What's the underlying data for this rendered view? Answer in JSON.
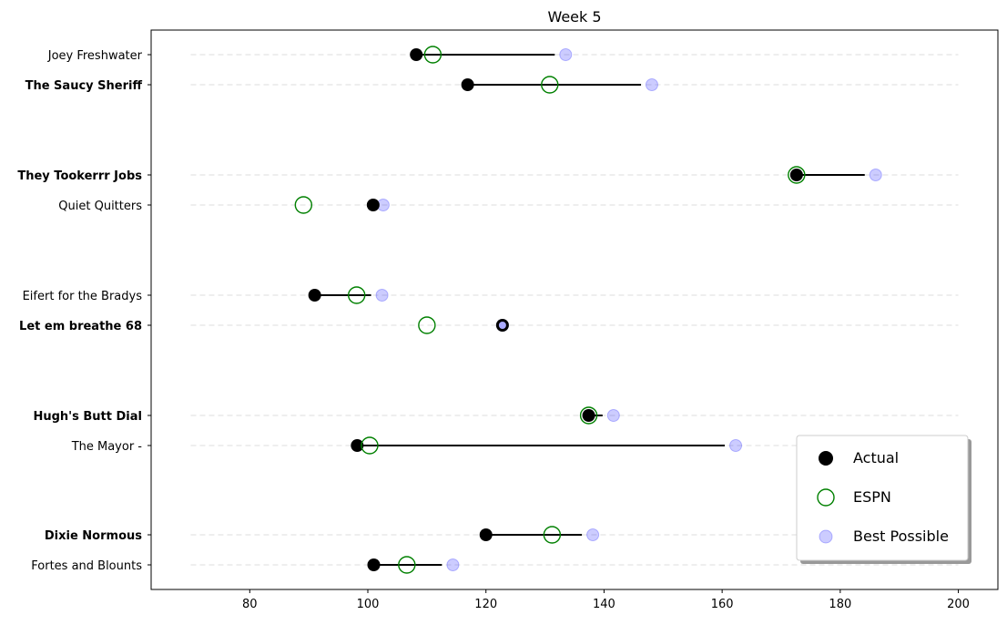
{
  "chart_data": {
    "type": "dumbbell",
    "title": "Week 5",
    "xlabel": "",
    "ylabel": "",
    "xlim": [
      63.3,
      206.7
    ],
    "x_ticks": [
      80,
      100,
      120,
      140,
      160,
      180,
      200
    ],
    "grid": "horizontal dashed guide lines per row",
    "legend_position": "lower-right",
    "legend": [
      {
        "key": "actual",
        "label": "Actual"
      },
      {
        "key": "espn",
        "label": "ESPN"
      },
      {
        "key": "best",
        "label": "Best Possible"
      }
    ],
    "colors": {
      "actual": "#000000",
      "espn": "#008000",
      "best": "#0000ff",
      "grid": "#dddddd"
    },
    "teams": [
      {
        "name": "Joey Freshwater",
        "bold": false,
        "actual": 108.2,
        "espn": 111.0,
        "best": 133.5
      },
      {
        "name": "The Saucy Sheriff",
        "bold": true,
        "actual": 116.9,
        "espn": 130.8,
        "best": 148.1
      },
      {
        "name": "They Tookerrr Jobs",
        "bold": true,
        "actual": 172.6,
        "espn": 172.6,
        "best": 186.0
      },
      {
        "name": "Quiet Quitters",
        "bold": false,
        "actual": 100.9,
        "espn": 89.1,
        "best": 102.6
      },
      {
        "name": "Eifert  for the Bradys",
        "bold": false,
        "actual": 91.0,
        "espn": 98.1,
        "best": 102.4
      },
      {
        "name": "Let em breathe 68",
        "bold": true,
        "actual": 122.8,
        "espn": 110.0,
        "best": 122.8
      },
      {
        "name": "Hugh's  Butt Dial",
        "bold": true,
        "actual": 137.4,
        "espn": 137.4,
        "best": 141.6
      },
      {
        "name": "The Mayor -",
        "bold": false,
        "actual": 98.2,
        "espn": 100.3,
        "best": 162.3
      },
      {
        "name": "Dixie Normous",
        "bold": true,
        "actual": 120.0,
        "espn": 131.2,
        "best": 138.1
      },
      {
        "name": "Fortes and Blounts",
        "bold": false,
        "actual": 101.0,
        "espn": 106.6,
        "best": 114.4
      }
    ]
  }
}
